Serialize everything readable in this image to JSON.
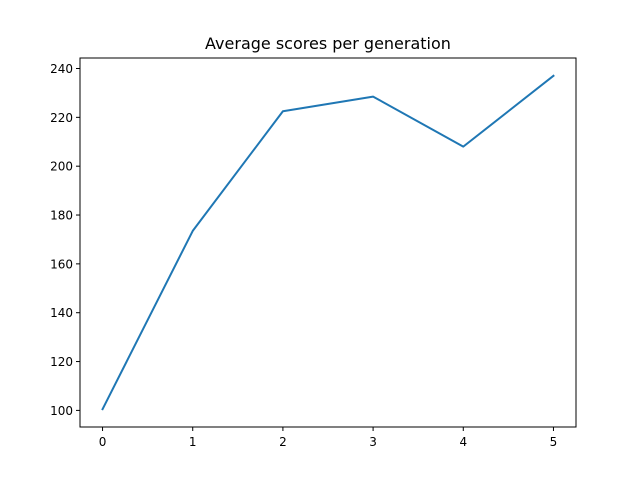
{
  "chart_data": {
    "type": "line",
    "title": "Average scores per generation",
    "xlabel": "",
    "ylabel": "",
    "x": [
      0,
      1,
      2,
      3,
      4,
      5
    ],
    "series": [
      {
        "values": [
          100.5,
          173.5,
          222.5,
          228.5,
          208.0,
          237.0
        ],
        "color": "#1f77b4"
      }
    ],
    "xlim": [
      -0.25,
      5.25
    ],
    "ylim": [
      93.2,
      244.3
    ],
    "xticks": [
      0,
      1,
      2,
      3,
      4,
      5
    ],
    "yticks": [
      100,
      120,
      140,
      160,
      180,
      200,
      220,
      240
    ],
    "grid": false,
    "legend": "none"
  }
}
